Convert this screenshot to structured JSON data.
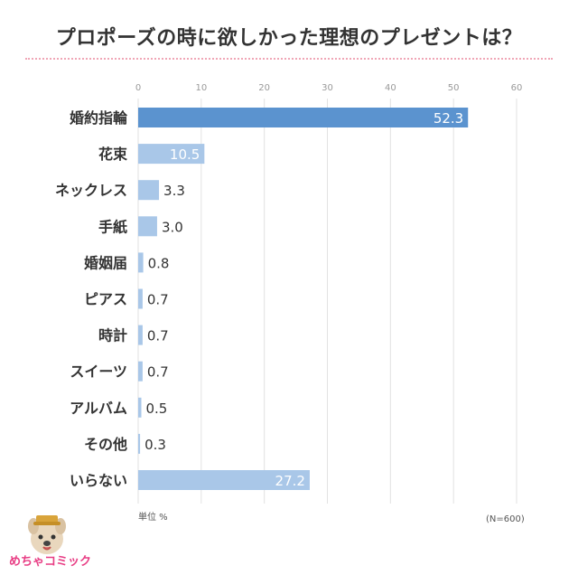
{
  "title": "プロポーズの時に欲しかった理想のプレゼントは？",
  "unit_label": "単位 %",
  "n_note": "(N=600)",
  "logo_text": "めちゃコミック",
  "colors": {
    "primary_bar": "#5b93cf",
    "secondary_bar": "#a9c7e8",
    "grid": "#e2e2e2",
    "divider": "#f0a6b6"
  },
  "chart_data": {
    "type": "bar",
    "orientation": "horizontal",
    "categories": [
      "婚約指輪",
      "花束",
      "ネックレス",
      "手紙",
      "婚姻届",
      "ピアス",
      "時計",
      "スイーツ",
      "アルバム",
      "その他",
      "いらない"
    ],
    "values": [
      52.3,
      10.5,
      3.3,
      3.0,
      0.8,
      0.7,
      0.7,
      0.7,
      0.5,
      0.3,
      27.2
    ],
    "value_labels": [
      "52.3",
      "10.5",
      "3.3",
      "3.0",
      "0.8",
      "0.7",
      "0.7",
      "0.7",
      "0.5",
      "0.3",
      "27.2"
    ],
    "xticks": [
      "0",
      "10",
      "20",
      "30",
      "40",
      "50",
      "60"
    ],
    "xlim": [
      0,
      60
    ],
    "grid": true,
    "highlight_index": 0
  }
}
